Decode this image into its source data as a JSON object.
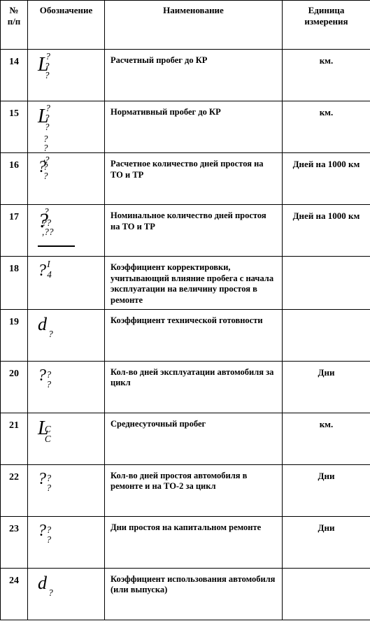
{
  "headers": {
    "num": "№ п/п",
    "sym": "Обозначение",
    "name": "Наименование",
    "unit": "Единица измерения"
  },
  "rows": [
    {
      "num": "14",
      "base": "L",
      "base_size": "28px",
      "sup": "?",
      "sup_left": "0.85em",
      "sub": "? ?",
      "sub_left": "0.75em",
      "name": "Расчетный пробег до КР",
      "unit": "км."
    },
    {
      "num": "15",
      "base": "L",
      "base_size": "28px",
      "sup": "?",
      "sup_left": "0.85em",
      "sub": "? ?",
      "sub_left": "0.75em",
      "name": "Нормативный пробег до КР",
      "unit": "км."
    },
    {
      "num": "16",
      "base": "?",
      "base_size": "24px",
      "sup": "?",
      "sup_left": "0.75em",
      "sub": "? ? , ? ?",
      "sub_left": "0.6em",
      "name": " Расчетное количество дней простоя на ТО и ТР",
      "unit": "Дней на 1000 км"
    },
    {
      "num": "17",
      "base": "?",
      "base_size": "30px",
      "sup": "?",
      "sup_left": "0.68em",
      "sub": "?? ,??",
      "sub_left": "0.45em",
      "underline": true,
      "ul_width": "2.2em",
      "name": "Номинальное количество дней простоя на ТО и ТР",
      "unit": "Дней на 1000 км"
    },
    {
      "num": "18",
      "base": "?",
      "base_size": "24px",
      "stack_sup": "I",
      "stack_sub": "4",
      "stack_left": "1.0em",
      "name": "Коэффициент корректировки, учитывающий влияние пробега с начала эксплуатации на величину простоя в ремонте",
      "unit": ""
    },
    {
      "num": "19",
      "base": "d",
      "base_size": "26px",
      "sub": "?",
      "sub_left": "1.15em",
      "name": "Коэффициент технической готовности",
      "unit": ""
    },
    {
      "num": "20",
      "base": "?",
      "base_size": "24px",
      "sub": "? ?",
      "sub_left": "0.95em",
      "name": "Кол-во дней эксплуатации автомобиля за цикл",
      "unit": "Дни"
    },
    {
      "num": "21",
      "base": "L",
      "base_size": "28px",
      "sub": "С С",
      "sub_left": "0.75em",
      "sub_style": "font-style:italic;",
      "name": "Среднесуточный пробег",
      "unit": "км."
    },
    {
      "num": "22",
      "base": "?",
      "base_size": "24px",
      "sub": "? ?",
      "sub_left": "0.95em",
      "name": "Кол-во дней простоя автомобиля в ремонте и на ТО-2 за цикл",
      "unit": "Дни"
    },
    {
      "num": "23",
      "base": "?",
      "base_size": "24px",
      "sub": "? ?",
      "sub_left": "0.95em",
      "name": "Дни простоя на капитальном ремонте",
      "unit": "Дни"
    },
    {
      "num": "24",
      "base": "d",
      "base_size": "26px",
      "sub": "?",
      "sub_left": "1.15em",
      "name": "Коэффициент использования автомобиля (или выпуска)",
      "unit": ""
    }
  ]
}
